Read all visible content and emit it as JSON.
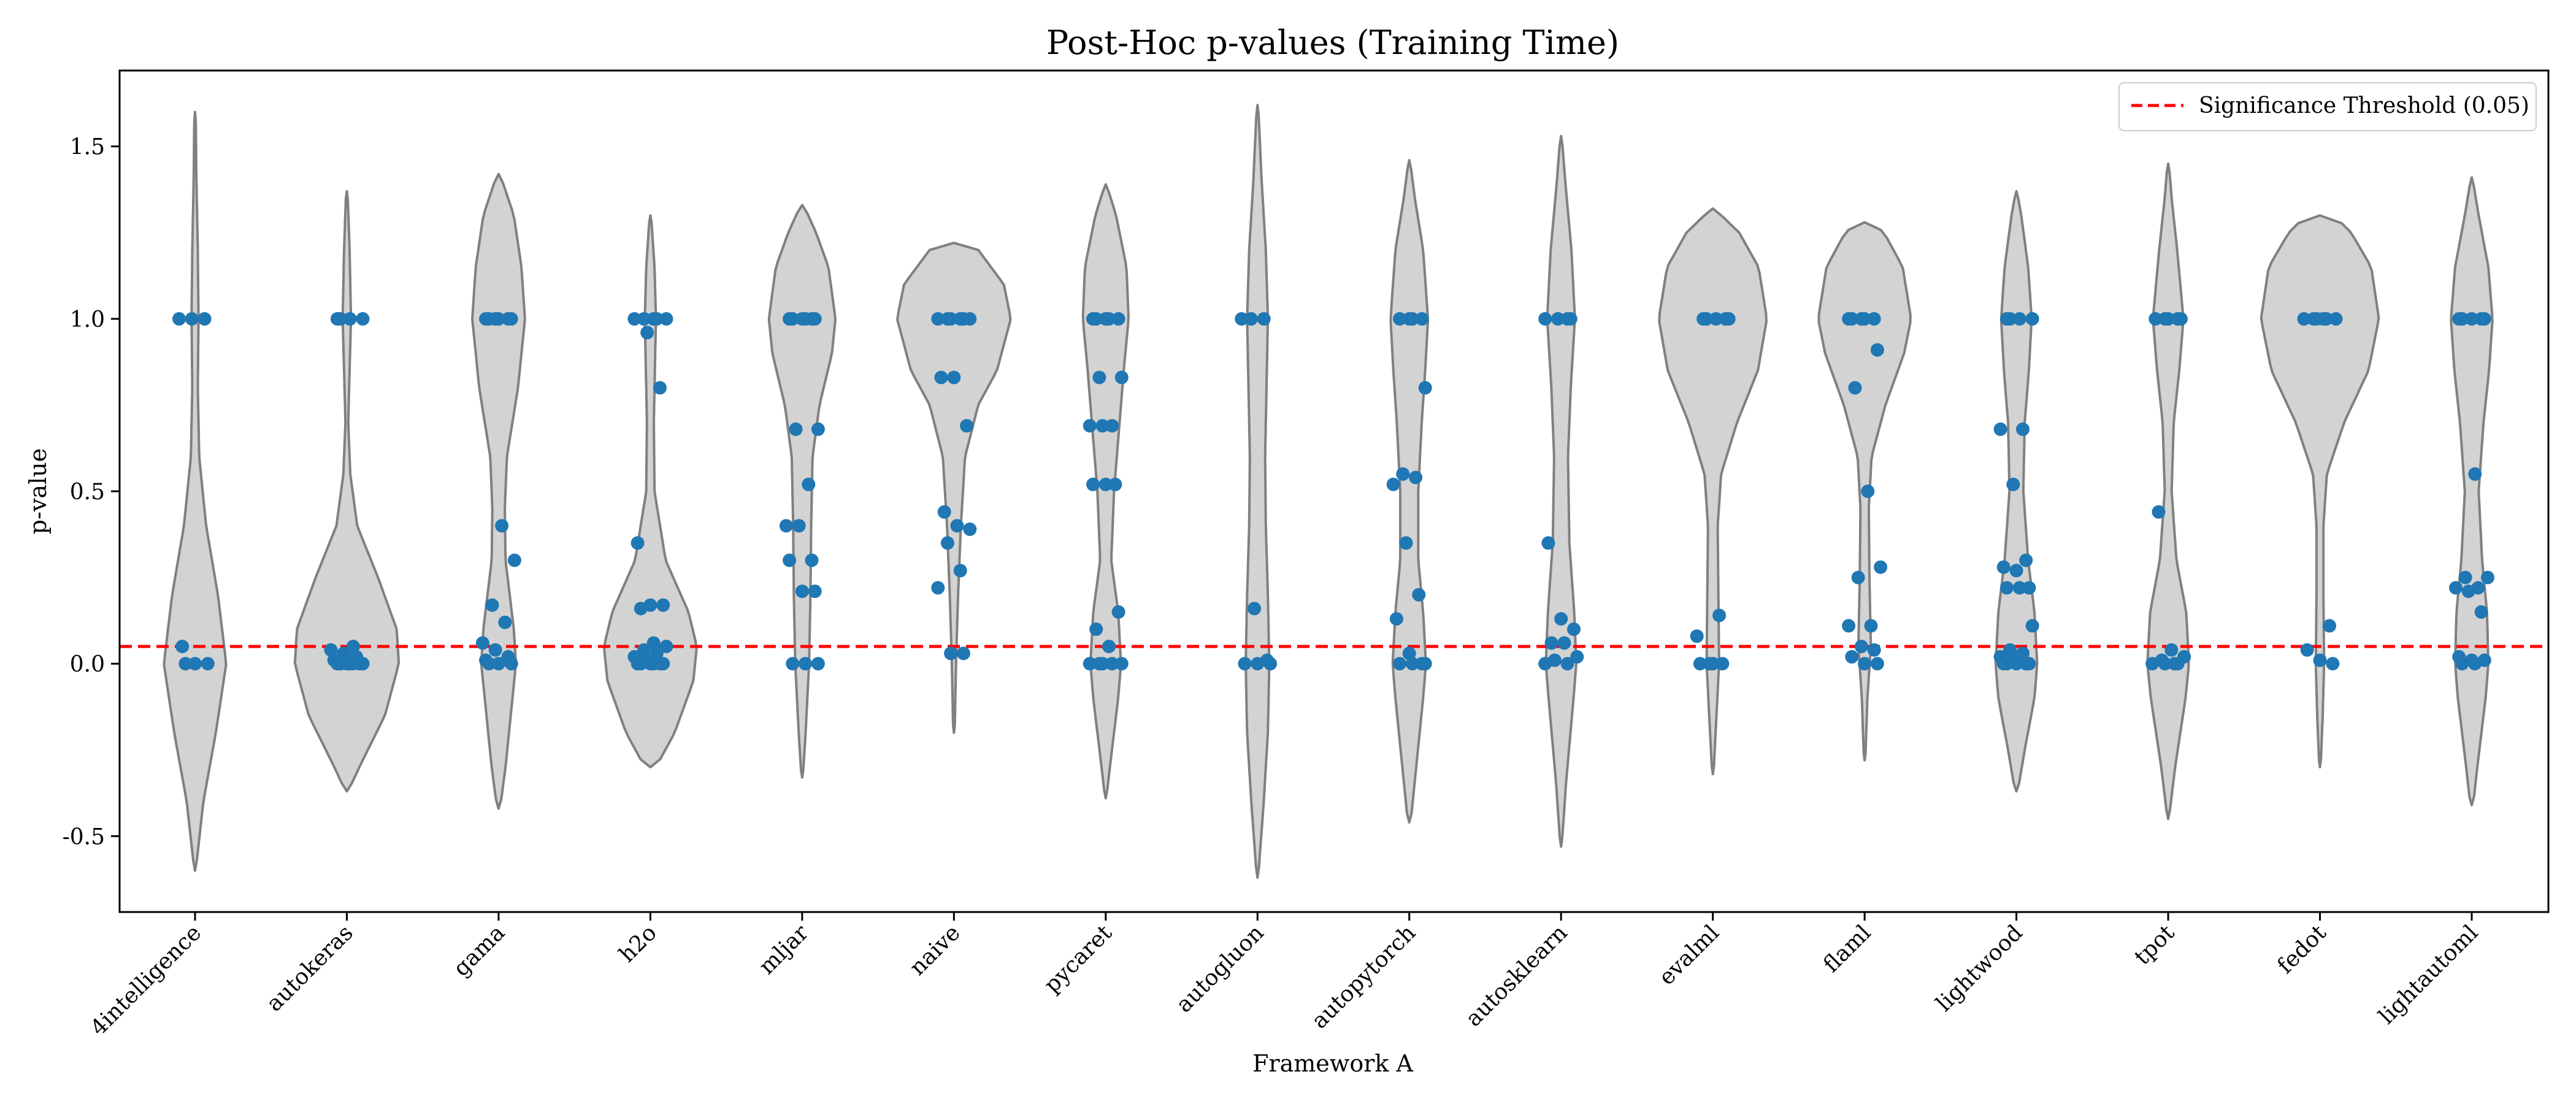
{
  "chart_data": {
    "type": "violin",
    "title": "Post-Hoc p-values (Training Time)",
    "xlabel": "Framework A",
    "ylabel": "p-value",
    "ylim": [
      -0.72,
      1.72
    ],
    "yticks": [
      -0.5,
      0.0,
      0.5,
      1.0,
      1.5
    ],
    "ytick_labels": [
      "-0.5",
      "0.0",
      "0.5",
      "1.0",
      "1.5"
    ],
    "grid": false,
    "legend": {
      "placement": "top-right",
      "entries": [
        {
          "label": "Significance Threshold (0.05)",
          "style": "dashed",
          "color": "#ff0000"
        }
      ]
    },
    "threshold": 0.05,
    "colors": {
      "violin_fill": "#d3d3d3",
      "violin_edge": "#808080",
      "point": "#1f77b4",
      "threshold_line": "#ff0000"
    },
    "categories": [
      "4intelligence",
      "autokeras",
      "gama",
      "h2o",
      "mljar",
      "naive",
      "pycaret",
      "autogluon",
      "autopytorch",
      "autosklearn",
      "evalml",
      "flaml",
      "lightwood",
      "tpot",
      "fedot",
      "lightautoml"
    ],
    "violins": [
      {
        "name": "4intelligence",
        "min": -0.6,
        "max": 1.6,
        "profile": [
          [
            -0.6,
            0.01
          ],
          [
            -0.4,
            0.12
          ],
          [
            -0.2,
            0.3
          ],
          [
            0.0,
            0.45
          ],
          [
            0.2,
            0.33
          ],
          [
            0.4,
            0.16
          ],
          [
            0.6,
            0.06
          ],
          [
            0.8,
            0.04
          ],
          [
            1.0,
            0.05
          ],
          [
            1.2,
            0.04
          ],
          [
            1.4,
            0.02
          ],
          [
            1.6,
            0.01
          ]
        ],
        "points": [
          1.0,
          1.0,
          1.0,
          0.05,
          0.0,
          0.0,
          0.0
        ]
      },
      {
        "name": "autokeras",
        "min": -0.37,
        "max": 1.37,
        "profile": [
          [
            -0.37,
            0.02
          ],
          [
            -0.3,
            0.18
          ],
          [
            -0.15,
            0.55
          ],
          [
            0.0,
            0.75
          ],
          [
            0.1,
            0.72
          ],
          [
            0.25,
            0.45
          ],
          [
            0.4,
            0.15
          ],
          [
            0.55,
            0.05
          ],
          [
            0.7,
            0.02
          ],
          [
            0.85,
            0.04
          ],
          [
            1.0,
            0.06
          ],
          [
            1.2,
            0.04
          ],
          [
            1.37,
            0.01
          ]
        ],
        "points": [
          1.0,
          1.0,
          1.0,
          1.0,
          0.05,
          0.04,
          0.03,
          0.02,
          0.01,
          0.0,
          0.0,
          0.0,
          0.0,
          0.0,
          0.0,
          0.0
        ]
      },
      {
        "name": "gama",
        "min": -0.42,
        "max": 1.42,
        "profile": [
          [
            -0.42,
            0.02
          ],
          [
            -0.3,
            0.1
          ],
          [
            -0.1,
            0.2
          ],
          [
            0.0,
            0.25
          ],
          [
            0.1,
            0.22
          ],
          [
            0.3,
            0.1
          ],
          [
            0.45,
            0.09
          ],
          [
            0.6,
            0.12
          ],
          [
            0.8,
            0.28
          ],
          [
            1.0,
            0.38
          ],
          [
            1.15,
            0.33
          ],
          [
            1.3,
            0.22
          ],
          [
            1.42,
            0.02
          ]
        ],
        "points": [
          1.0,
          1.0,
          1.0,
          1.0,
          1.0,
          1.0,
          0.4,
          0.3,
          0.17,
          0.12,
          0.06,
          0.04,
          0.02,
          0.01,
          0.0,
          0.0,
          0.0
        ]
      },
      {
        "name": "h2o",
        "min": -0.3,
        "max": 1.3,
        "profile": [
          [
            -0.3,
            0.08
          ],
          [
            -0.2,
            0.35
          ],
          [
            -0.05,
            0.62
          ],
          [
            0.05,
            0.67
          ],
          [
            0.15,
            0.55
          ],
          [
            0.3,
            0.22
          ],
          [
            0.5,
            0.06
          ],
          [
            0.7,
            0.05
          ],
          [
            0.9,
            0.07
          ],
          [
            1.0,
            0.08
          ],
          [
            1.15,
            0.06
          ],
          [
            1.3,
            0.01
          ]
        ],
        "points": [
          1.0,
          1.0,
          1.0,
          1.0,
          1.0,
          0.96,
          0.8,
          0.35,
          0.17,
          0.17,
          0.16,
          0.06,
          0.05,
          0.04,
          0.03,
          0.02,
          0.01,
          0.0,
          0.0,
          0.0,
          0.0,
          0.0,
          0.0
        ]
      },
      {
        "name": "mljar",
        "min": -0.33,
        "max": 1.33,
        "profile": [
          [
            -0.33,
            0.01
          ],
          [
            -0.2,
            0.05
          ],
          [
            0.0,
            0.1
          ],
          [
            0.2,
            0.12
          ],
          [
            0.4,
            0.13
          ],
          [
            0.6,
            0.15
          ],
          [
            0.75,
            0.25
          ],
          [
            0.9,
            0.43
          ],
          [
            1.0,
            0.48
          ],
          [
            1.15,
            0.38
          ],
          [
            1.25,
            0.2
          ],
          [
            1.33,
            0.02
          ]
        ],
        "points": [
          1.0,
          1.0,
          1.0,
          1.0,
          1.0,
          1.0,
          0.68,
          0.68,
          0.52,
          0.4,
          0.4,
          0.3,
          0.3,
          0.21,
          0.21,
          0.0,
          0.0,
          0.0
        ]
      },
      {
        "name": "naive",
        "min": -0.2,
        "max": 1.22,
        "profile": [
          [
            -0.2,
            0.01
          ],
          [
            0.0,
            0.03
          ],
          [
            0.2,
            0.06
          ],
          [
            0.4,
            0.1
          ],
          [
            0.6,
            0.16
          ],
          [
            0.75,
            0.35
          ],
          [
            0.85,
            0.62
          ],
          [
            1.0,
            0.82
          ],
          [
            1.1,
            0.72
          ],
          [
            1.2,
            0.35
          ],
          [
            1.22,
            0.2
          ]
        ],
        "points": [
          1.0,
          1.0,
          1.0,
          1.0,
          1.0,
          1.0,
          0.83,
          0.83,
          0.69,
          0.44,
          0.4,
          0.39,
          0.35,
          0.27,
          0.22,
          0.03,
          0.03
        ]
      },
      {
        "name": "pycaret",
        "min": -0.39,
        "max": 1.39,
        "profile": [
          [
            -0.39,
            0.01
          ],
          [
            -0.3,
            0.06
          ],
          [
            -0.1,
            0.18
          ],
          [
            0.0,
            0.22
          ],
          [
            0.15,
            0.18
          ],
          [
            0.3,
            0.08
          ],
          [
            0.5,
            0.12
          ],
          [
            0.7,
            0.2
          ],
          [
            0.85,
            0.26
          ],
          [
            1.0,
            0.33
          ],
          [
            1.15,
            0.3
          ],
          [
            1.3,
            0.15
          ],
          [
            1.39,
            0.01
          ]
        ],
        "points": [
          1.0,
          1.0,
          1.0,
          1.0,
          1.0,
          0.83,
          0.83,
          0.69,
          0.69,
          0.69,
          0.52,
          0.52,
          0.52,
          0.15,
          0.1,
          0.05,
          0.0,
          0.0,
          0.0,
          0.0,
          0.0
        ]
      },
      {
        "name": "autogluon",
        "min": -0.62,
        "max": 1.62,
        "profile": [
          [
            -0.62,
            0.01
          ],
          [
            -0.4,
            0.09
          ],
          [
            -0.2,
            0.15
          ],
          [
            0.0,
            0.17
          ],
          [
            0.2,
            0.15
          ],
          [
            0.4,
            0.12
          ],
          [
            0.6,
            0.11
          ],
          [
            0.8,
            0.13
          ],
          [
            1.0,
            0.15
          ],
          [
            1.2,
            0.12
          ],
          [
            1.4,
            0.06
          ],
          [
            1.62,
            0.01
          ]
        ],
        "points": [
          1.0,
          1.0,
          1.0,
          0.16,
          0.01,
          0.0,
          0.0,
          0.0
        ]
      },
      {
        "name": "autopytorch",
        "min": -0.46,
        "max": 1.46,
        "profile": [
          [
            -0.46,
            0.02
          ],
          [
            -0.3,
            0.1
          ],
          [
            -0.1,
            0.2
          ],
          [
            0.0,
            0.24
          ],
          [
            0.15,
            0.2
          ],
          [
            0.3,
            0.13
          ],
          [
            0.5,
            0.13
          ],
          [
            0.7,
            0.18
          ],
          [
            0.85,
            0.23
          ],
          [
            1.0,
            0.27
          ],
          [
            1.2,
            0.2
          ],
          [
            1.35,
            0.08
          ],
          [
            1.46,
            0.01
          ]
        ],
        "points": [
          1.0,
          1.0,
          1.0,
          1.0,
          0.8,
          0.55,
          0.54,
          0.52,
          0.35,
          0.2,
          0.13,
          0.03,
          0.0,
          0.0,
          0.0,
          0.0
        ]
      },
      {
        "name": "autosklearn",
        "min": -0.53,
        "max": 1.53,
        "profile": [
          [
            -0.53,
            0.01
          ],
          [
            -0.35,
            0.07
          ],
          [
            -0.1,
            0.18
          ],
          [
            0.0,
            0.22
          ],
          [
            0.15,
            0.19
          ],
          [
            0.35,
            0.12
          ],
          [
            0.6,
            0.1
          ],
          [
            0.8,
            0.14
          ],
          [
            1.0,
            0.2
          ],
          [
            1.2,
            0.15
          ],
          [
            1.4,
            0.06
          ],
          [
            1.53,
            0.01
          ]
        ],
        "points": [
          1.0,
          1.0,
          1.0,
          1.0,
          0.35,
          0.13,
          0.1,
          0.06,
          0.06,
          0.02,
          0.01,
          0.0,
          0.0
        ]
      },
      {
        "name": "evalml",
        "min": -0.32,
        "max": 1.32,
        "profile": [
          [
            -0.32,
            0.01
          ],
          [
            -0.2,
            0.04
          ],
          [
            0.0,
            0.09
          ],
          [
            0.2,
            0.08
          ],
          [
            0.4,
            0.07
          ],
          [
            0.55,
            0.12
          ],
          [
            0.7,
            0.35
          ],
          [
            0.85,
            0.65
          ],
          [
            1.0,
            0.78
          ],
          [
            1.15,
            0.66
          ],
          [
            1.25,
            0.38
          ],
          [
            1.32,
            0.02
          ]
        ],
        "points": [
          1.0,
          1.0,
          1.0,
          1.0,
          1.0,
          0.14,
          0.08,
          0.0,
          0.0,
          0.0,
          0.0
        ]
      },
      {
        "name": "flaml",
        "min": -0.28,
        "max": 1.28,
        "profile": [
          [
            -0.28,
            0.01
          ],
          [
            -0.1,
            0.04
          ],
          [
            0.05,
            0.09
          ],
          [
            0.25,
            0.07
          ],
          [
            0.45,
            0.06
          ],
          [
            0.6,
            0.1
          ],
          [
            0.75,
            0.3
          ],
          [
            0.9,
            0.57
          ],
          [
            1.0,
            0.67
          ],
          [
            1.15,
            0.55
          ],
          [
            1.25,
            0.28
          ],
          [
            1.28,
            0.1
          ]
        ],
        "points": [
          1.0,
          1.0,
          1.0,
          1.0,
          1.0,
          0.91,
          0.8,
          0.5,
          0.28,
          0.25,
          0.11,
          0.11,
          0.05,
          0.04,
          0.02,
          0.0,
          0.0
        ]
      },
      {
        "name": "lightwood",
        "min": -0.37,
        "max": 1.37,
        "profile": [
          [
            -0.37,
            0.02
          ],
          [
            -0.25,
            0.12
          ],
          [
            -0.1,
            0.26
          ],
          [
            0.0,
            0.3
          ],
          [
            0.15,
            0.26
          ],
          [
            0.3,
            0.17
          ],
          [
            0.5,
            0.1
          ],
          [
            0.7,
            0.12
          ],
          [
            0.85,
            0.18
          ],
          [
            1.0,
            0.22
          ],
          [
            1.15,
            0.17
          ],
          [
            1.3,
            0.07
          ],
          [
            1.37,
            0.01
          ]
        ],
        "points": [
          1.0,
          1.0,
          1.0,
          1.0,
          0.68,
          0.68,
          0.52,
          0.3,
          0.28,
          0.27,
          0.22,
          0.22,
          0.22,
          0.11,
          0.04,
          0.03,
          0.02,
          0.01,
          0.0,
          0.0,
          0.0,
          0.0,
          0.0
        ]
      },
      {
        "name": "tpot",
        "min": -0.45,
        "max": 1.45,
        "profile": [
          [
            -0.45,
            0.01
          ],
          [
            -0.3,
            0.1
          ],
          [
            -0.1,
            0.25
          ],
          [
            0.0,
            0.3
          ],
          [
            0.15,
            0.26
          ],
          [
            0.3,
            0.12
          ],
          [
            0.5,
            0.05
          ],
          [
            0.7,
            0.08
          ],
          [
            0.85,
            0.16
          ],
          [
            1.0,
            0.22
          ],
          [
            1.2,
            0.13
          ],
          [
            1.35,
            0.05
          ],
          [
            1.45,
            0.01
          ]
        ],
        "points": [
          1.0,
          1.0,
          1.0,
          1.0,
          1.0,
          0.44,
          0.04,
          0.02,
          0.01,
          0.0,
          0.0,
          0.0,
          0.0
        ]
      },
      {
        "name": "fedot",
        "min": -0.3,
        "max": 1.3,
        "profile": [
          [
            -0.3,
            0.01
          ],
          [
            -0.15,
            0.04
          ],
          [
            0.0,
            0.06
          ],
          [
            0.2,
            0.05
          ],
          [
            0.4,
            0.05
          ],
          [
            0.55,
            0.1
          ],
          [
            0.7,
            0.35
          ],
          [
            0.85,
            0.7
          ],
          [
            1.0,
            0.85
          ],
          [
            1.15,
            0.74
          ],
          [
            1.25,
            0.45
          ],
          [
            1.3,
            0.2
          ]
        ],
        "points": [
          1.0,
          1.0,
          1.0,
          1.0,
          1.0,
          1.0,
          0.11,
          0.04,
          0.01,
          0.0
        ]
      },
      {
        "name": "lightautoml",
        "min": -0.41,
        "max": 1.41,
        "profile": [
          [
            -0.41,
            0.02
          ],
          [
            -0.3,
            0.08
          ],
          [
            -0.1,
            0.2
          ],
          [
            0.0,
            0.24
          ],
          [
            0.15,
            0.22
          ],
          [
            0.3,
            0.15
          ],
          [
            0.5,
            0.1
          ],
          [
            0.7,
            0.17
          ],
          [
            0.85,
            0.25
          ],
          [
            1.0,
            0.3
          ],
          [
            1.15,
            0.24
          ],
          [
            1.3,
            0.1
          ],
          [
            1.41,
            0.01
          ]
        ],
        "points": [
          1.0,
          1.0,
          1.0,
          1.0,
          1.0,
          0.55,
          0.25,
          0.25,
          0.22,
          0.22,
          0.21,
          0.15,
          0.02,
          0.01,
          0.01,
          0.0,
          0.0
        ]
      }
    ]
  }
}
